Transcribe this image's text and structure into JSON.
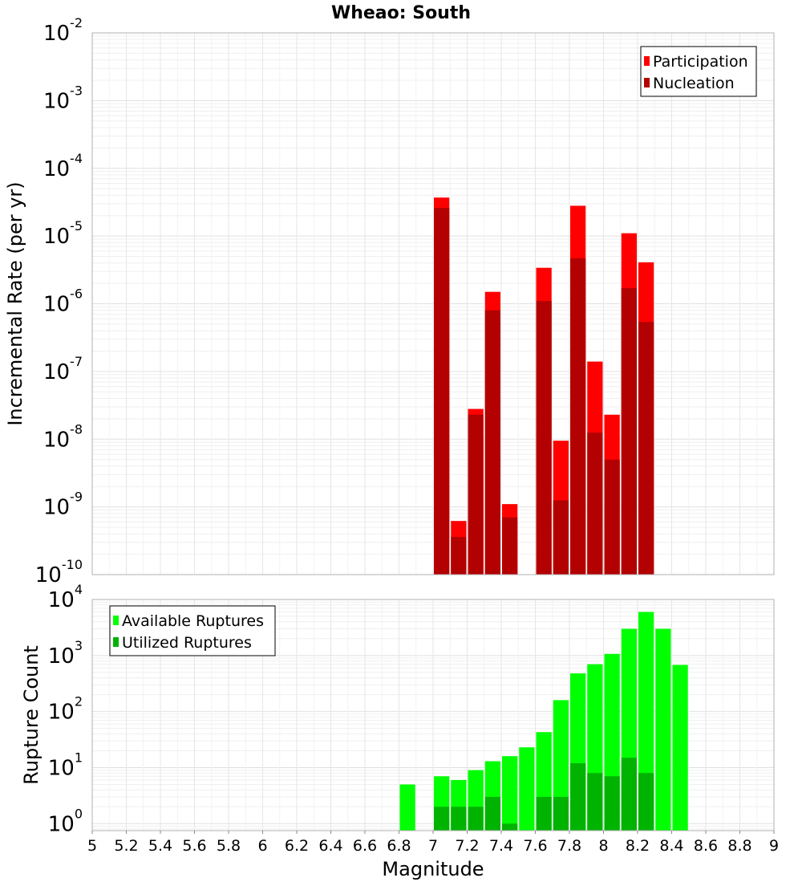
{
  "chart_data": [
    {
      "type": "bar",
      "title": "Wheao: South",
      "xlabel": "",
      "ylabel": "Incremental Rate (per yr)",
      "ylog": true,
      "xlim": [
        5,
        9
      ],
      "ylim": [
        1e-10,
        0.01
      ],
      "ytick_exponents": [
        -10,
        -9,
        -8,
        -7,
        -6,
        -5,
        -4,
        -3,
        -2
      ],
      "grid": true,
      "legend": "top-right",
      "bin_width": 0.1,
      "series": [
        {
          "name": "Participation",
          "color": "#ff0000",
          "x": [
            7.05,
            7.15,
            7.25,
            7.35,
            7.45,
            7.65,
            7.75,
            7.85,
            7.95,
            8.05,
            8.15,
            8.25
          ],
          "values": [
            3.7e-05,
            6.2e-10,
            2.8e-08,
            1.5e-06,
            1.1e-09,
            3.4e-06,
            9.5e-09,
            2.8e-05,
            1.4e-07,
            2.3e-08,
            1.1e-05,
            4.1e-06
          ]
        },
        {
          "name": "Nucleation",
          "color": "#b30000",
          "x": [
            7.05,
            7.15,
            7.25,
            7.35,
            7.45,
            7.65,
            7.75,
            7.85,
            7.95,
            8.05,
            8.15,
            8.25
          ],
          "values": [
            2.6e-05,
            3.6e-10,
            2.3e-08,
            8e-07,
            7e-10,
            1.1e-06,
            1.25e-09,
            4.7e-06,
            1.25e-08,
            5e-09,
            1.7e-06,
            5.4e-07
          ]
        }
      ]
    },
    {
      "type": "bar",
      "title": "",
      "xlabel": "Magnitude",
      "ylabel": "Rupture Count",
      "ylog": true,
      "xlim": [
        5,
        9
      ],
      "ylim": [
        0.75,
        10000
      ],
      "ytick_exponents": [
        0,
        1,
        2,
        3,
        4
      ],
      "xticks": [
        "5",
        "5.2",
        "5.4",
        "5.6",
        "5.8",
        "6",
        "6.2",
        "6.4",
        "6.6",
        "6.8",
        "7",
        "7.2",
        "7.4",
        "7.6",
        "7.8",
        "8",
        "8.2",
        "8.4",
        "8.6",
        "8.8",
        "9"
      ],
      "grid": true,
      "legend": "top-left",
      "bin_width": 0.1,
      "series": [
        {
          "name": "Available Ruptures",
          "color": "#00ff00",
          "x": [
            6.85,
            7.05,
            7.15,
            7.25,
            7.35,
            7.45,
            7.55,
            7.65,
            7.75,
            7.85,
            7.95,
            8.05,
            8.15,
            8.25,
            8.35,
            8.45
          ],
          "values": [
            5,
            7,
            6,
            9,
            13,
            16,
            23,
            43,
            160,
            480,
            700,
            1070,
            3000,
            6000,
            3000,
            680
          ]
        },
        {
          "name": "Utilized Ruptures",
          "color": "#00b300",
          "x": [
            7.05,
            7.15,
            7.25,
            7.35,
            7.45,
            7.65,
            7.75,
            7.85,
            7.95,
            8.05,
            8.15,
            8.25
          ],
          "values": [
            2,
            2,
            2,
            3,
            1,
            3,
            3,
            12,
            8,
            7,
            15,
            8
          ]
        }
      ]
    }
  ]
}
